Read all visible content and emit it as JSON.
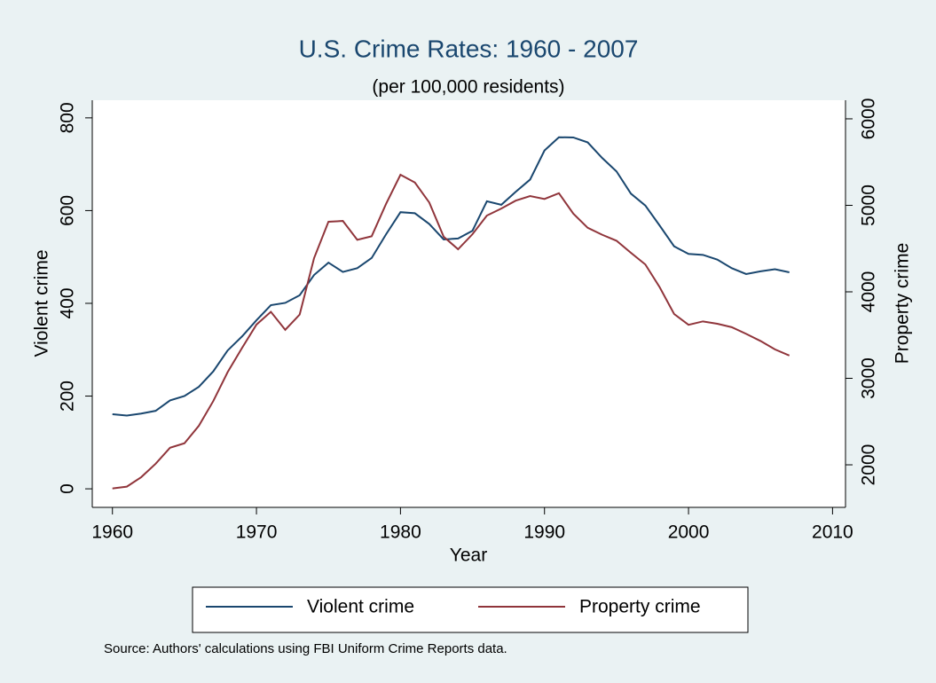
{
  "chart_data": {
    "type": "line",
    "title": "U.S. Crime Rates: 1960 - 2007",
    "subtitle": "(per 100,000 residents)",
    "x_label": "Year",
    "y_label": "Violent crime",
    "y2_label": "Property crime",
    "note": "Source: Authors' calculations using FBI Uniform Crime Reports data.",
    "legend": "bottom",
    "x": [
      1960,
      1961,
      1962,
      1963,
      1964,
      1965,
      1966,
      1967,
      1968,
      1969,
      1970,
      1971,
      1972,
      1973,
      1974,
      1975,
      1976,
      1977,
      1978,
      1979,
      1980,
      1981,
      1982,
      1983,
      1984,
      1985,
      1986,
      1987,
      1988,
      1989,
      1990,
      1991,
      1992,
      1993,
      1994,
      1995,
      1996,
      1997,
      1998,
      1999,
      2000,
      2001,
      2002,
      2003,
      2004,
      2005,
      2006,
      2007
    ],
    "series": [
      {
        "name": "Violent crime",
        "color": "#1a476f",
        "axis": "y",
        "values": [
          160.9,
          158.1,
          162.3,
          168.2,
          190.6,
          200.2,
          220,
          253.2,
          298.4,
          328.7,
          363.5,
          396,
          401,
          417.4,
          461.1,
          487.8,
          467.8,
          475.9,
          497.8,
          548.9,
          596.6,
          594.3,
          571.1,
          537.7,
          539.9,
          556.6,
          620.1,
          612.5,
          640.6,
          666.9,
          729.6,
          758.2,
          757.7,
          747.1,
          713.6,
          684.5,
          636.6,
          611,
          567.6,
          523,
          506.5,
          504.5,
          494.4,
          475.8,
          463.2,
          469,
          473.6,
          466.9
        ]
      },
      {
        "name": "Property crime",
        "color": "#90353b",
        "axis": "y2",
        "values": [
          1726.3,
          1747.9,
          1857.5,
          2012.1,
          2197.5,
          2248.8,
          2450.9,
          2736.5,
          3071.8,
          3351.3,
          3621,
          3768.8,
          3560.4,
          3737,
          4389.3,
          4810.7,
          4819.5,
          4601.7,
          4642.5,
          5016.6,
          5353.3,
          5263.8,
          5032.5,
          4637.4,
          4492.1,
          4666.4,
          4881.8,
          4963,
          5054,
          5107.1,
          5073.1,
          5140.2,
          4903.7,
          4740,
          4660.2,
          4590.5,
          4451,
          4316.3,
          4052.5,
          3743.6,
          3618.3,
          3658.1,
          3630.6,
          3591.2,
          3514.1,
          3431.5,
          3334.5,
          3263.5
        ]
      }
    ],
    "xlim": [
      1958.6,
      2010.9
    ],
    "xticks": [
      1960,
      1970,
      1980,
      1990,
      2000,
      2010
    ],
    "ylim": [
      -40,
      838
    ],
    "yticks": [
      0,
      200,
      400,
      600,
      800
    ],
    "y2lim": [
      1508,
      6215
    ],
    "y2ticks": [
      2000,
      3000,
      4000,
      5000,
      6000
    ]
  }
}
